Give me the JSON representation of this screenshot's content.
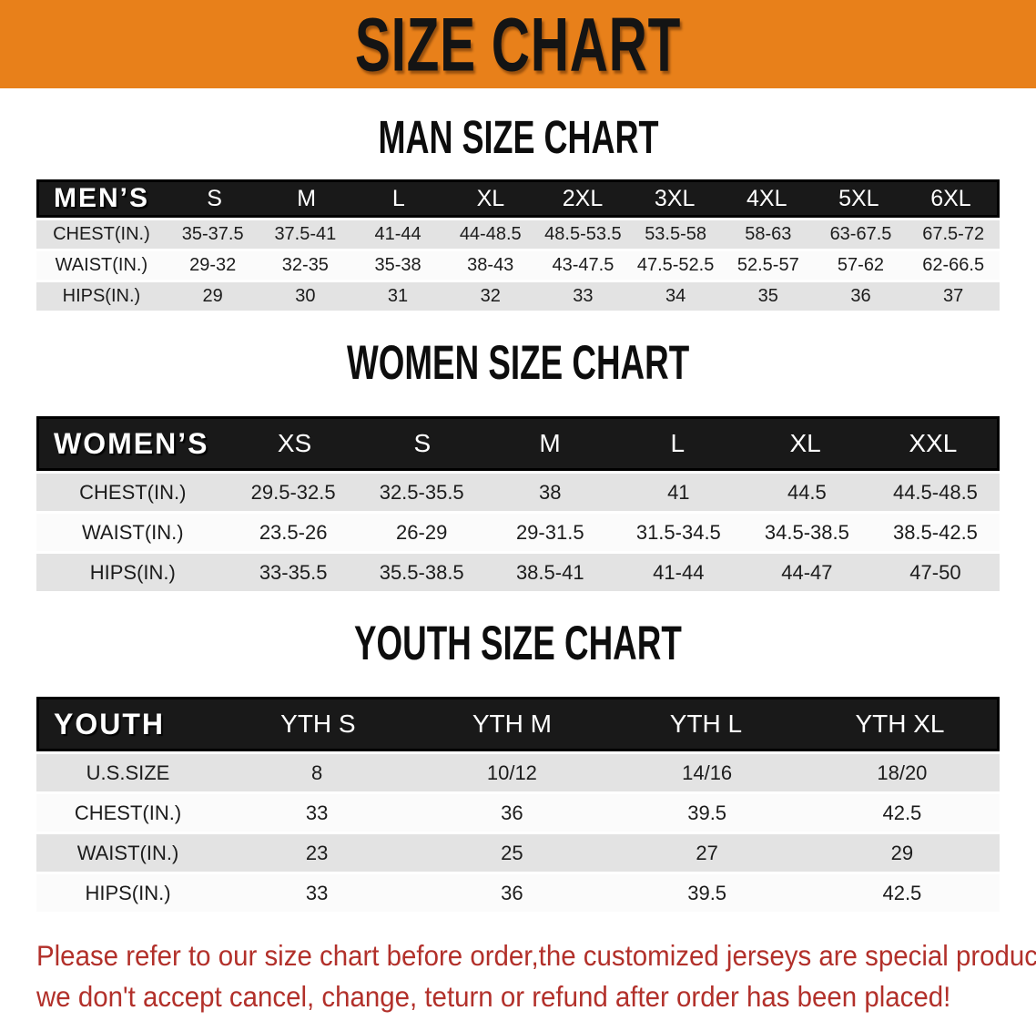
{
  "banner": {
    "title": "SIZE CHART"
  },
  "colors": {
    "banner_bg": "#E8801A",
    "header_bar": "#191919",
    "stripe_gray": "#E3E3E3",
    "disclaimer_red": "#B2302A"
  },
  "sections": [
    {
      "heading": "MAN SIZE CHART",
      "table": {
        "header_label": "MEN’S",
        "columns": [
          "S",
          "M",
          "L",
          "XL",
          "2XL",
          "3XL",
          "4XL",
          "5XL",
          "6XL"
        ],
        "rows": [
          {
            "label": "CHEST(IN.)",
            "values": [
              "35-37.5",
              "37.5-41",
              "41-44",
              "44-48.5",
              "48.5-53.5",
              "53.5-58",
              "58-63",
              "63-67.5",
              "67.5-72"
            ]
          },
          {
            "label": "WAIST(IN.)",
            "values": [
              "29-32",
              "32-35",
              "35-38",
              "38-43",
              "43-47.5",
              "47.5-52.5",
              "52.5-57",
              "57-62",
              "62-66.5"
            ]
          },
          {
            "label": "HIPS(IN.)",
            "values": [
              "29",
              "30",
              "31",
              "32",
              "33",
              "34",
              "35",
              "36",
              "37"
            ]
          }
        ]
      }
    },
    {
      "heading": "WOMEN SIZE CHART",
      "table": {
        "header_label": "WOMEN’S",
        "columns": [
          "XS",
          "S",
          "M",
          "L",
          "XL",
          "XXL"
        ],
        "rows": [
          {
            "label": "CHEST(IN.)",
            "values": [
              "29.5-32.5",
              "32.5-35.5",
              "38",
              "41",
              "44.5",
              "44.5-48.5"
            ]
          },
          {
            "label": "WAIST(IN.)",
            "values": [
              "23.5-26",
              "26-29",
              "29-31.5",
              "31.5-34.5",
              "34.5-38.5",
              "38.5-42.5"
            ]
          },
          {
            "label": "HIPS(IN.)",
            "values": [
              "33-35.5",
              "35.5-38.5",
              "38.5-41",
              "41-44",
              "44-47",
              "47-50"
            ]
          }
        ]
      }
    },
    {
      "heading": "YOUTH SIZE CHART",
      "table": {
        "header_label": "YOUTH",
        "columns": [
          "YTH S",
          "YTH M",
          "YTH L",
          "YTH XL"
        ],
        "rows": [
          {
            "label": "U.S.SIZE",
            "values": [
              "8",
              "10/12",
              "14/16",
              "18/20"
            ]
          },
          {
            "label": "CHEST(IN.)",
            "values": [
              "33",
              "36",
              "39.5",
              "42.5"
            ]
          },
          {
            "label": "WAIST(IN.)",
            "values": [
              "23",
              "25",
              "27",
              "29"
            ]
          },
          {
            "label": "HIPS(IN.)",
            "values": [
              "33",
              "36",
              "39.5",
              "42.5"
            ]
          }
        ]
      }
    }
  ],
  "disclaimer": {
    "line1": "Please refer to our size chart before order,the customized jerseys are special products,",
    "line2": "we don't accept cancel, change, teturn or refund after order has been placed!"
  }
}
